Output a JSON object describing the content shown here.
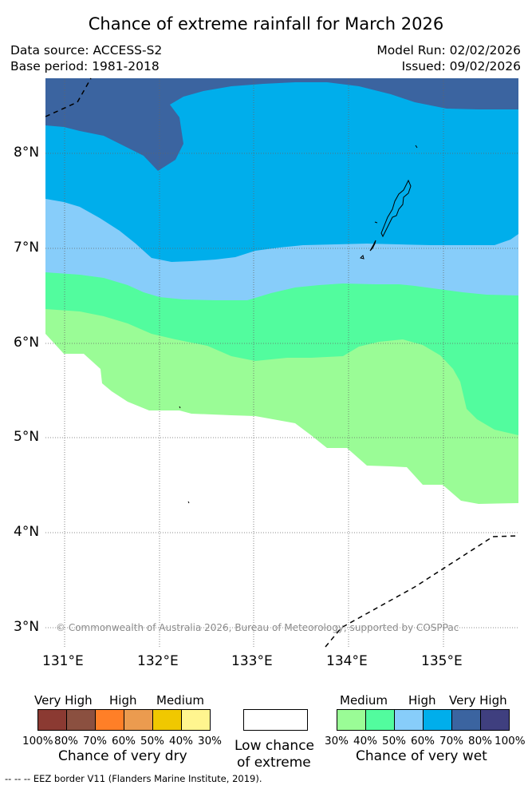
{
  "header": {
    "title": "Chance of extreme rainfall for March 2026",
    "data_source": "Data source: ACCESS-S2",
    "base_period": "Base period: 1981-2018",
    "model_run": "Model Run: 02/02/2026",
    "issued": "Issued: 09/02/2026"
  },
  "map": {
    "lat_labels": [
      "8°N",
      "7°N",
      "6°N",
      "5°N",
      "4°N",
      "3°N"
    ],
    "lon_labels": [
      "131°E",
      "132°E",
      "133°E",
      "134°E",
      "135°E"
    ],
    "copyright": "© Commonwealth of Australia 2026, Bureau of Meteorology, supported by COSPPac",
    "colors": {
      "very_high_wet_80_100": "#3f3f7f",
      "very_high_wet_70_80": "#3b64a0",
      "high_wet_60_70": "#00aeeb",
      "high_wet_50_60": "#87cdfa",
      "medium_wet_40_50": "#52fc9e",
      "medium_wet_30_40": "#9afc96",
      "low": "#ffffff"
    }
  },
  "legend": {
    "dry": {
      "categories": [
        "Very High",
        "High",
        "Medium"
      ],
      "percents": [
        "100%",
        "80%",
        "70%",
        "60%",
        "50%",
        "40%",
        "30%"
      ],
      "colors": [
        "#8b3a32",
        "#8b5040",
        "#ff7f27",
        "#eb9b4f",
        "#f0c800",
        "#fff58f"
      ],
      "caption": "Chance of very dry"
    },
    "low": {
      "line1": "Low chance",
      "line2": "of extreme"
    },
    "wet": {
      "categories": [
        "Medium",
        "High",
        "Very High"
      ],
      "percents": [
        "30%",
        "40%",
        "50%",
        "60%",
        "70%",
        "80%",
        "100%"
      ],
      "colors": [
        "#9afc96",
        "#52fc9e",
        "#87cdfa",
        "#00aeeb",
        "#3b64a0",
        "#3f3f7f"
      ],
      "caption": "Chance of very wet"
    }
  },
  "footer": {
    "eez_note": "--  --  -- EEZ border V11 (Flanders Marine Institute, 2019)."
  }
}
